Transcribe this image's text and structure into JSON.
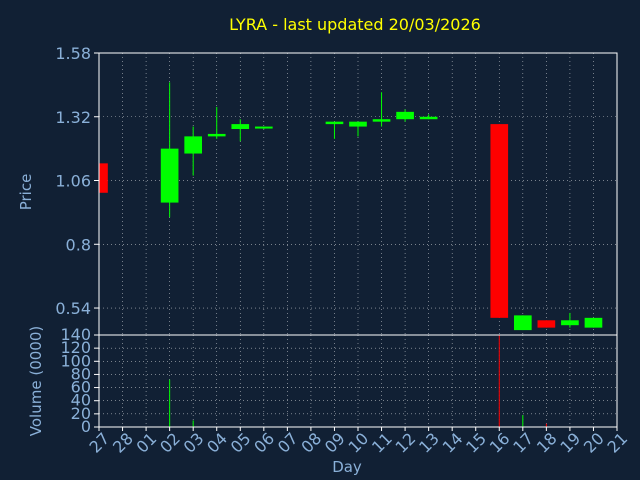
{
  "chart_data": [
    {
      "type": "candlestick",
      "title": "LYRA - last updated 20/03/2026",
      "ylabel": "Price",
      "ylim": [
        0.43,
        1.58
      ],
      "yticks": [
        "1.58",
        "1.32",
        "1.06",
        "0.8",
        "0.54"
      ],
      "ytick_values": [
        1.58,
        1.32,
        1.06,
        0.8,
        0.54
      ],
      "grid": true,
      "up_color": "#00ff00",
      "down_color": "#ff0000",
      "candles": [
        {
          "day": "27",
          "open": 1.13,
          "high": 1.13,
          "low": 1.01,
          "close": 1.01
        },
        {
          "day": "02",
          "open": 0.97,
          "high": 1.46,
          "low": 0.91,
          "close": 1.19
        },
        {
          "day": "03",
          "open": 1.17,
          "high": 1.28,
          "low": 1.08,
          "close": 1.24
        },
        {
          "day": "04",
          "open": 1.24,
          "high": 1.36,
          "low": 1.23,
          "close": 1.25
        },
        {
          "day": "05",
          "open": 1.27,
          "high": 1.31,
          "low": 1.22,
          "close": 1.29
        },
        {
          "day": "06",
          "open": 1.28,
          "high": 1.28,
          "low": 1.27,
          "close": 1.28
        },
        {
          "day": "09",
          "open": 1.29,
          "high": 1.3,
          "low": 1.23,
          "close": 1.3
        },
        {
          "day": "10",
          "open": 1.28,
          "high": 1.3,
          "low": 1.24,
          "close": 1.3
        },
        {
          "day": "11",
          "open": 1.3,
          "high": 1.42,
          "low": 1.28,
          "close": 1.31
        },
        {
          "day": "12",
          "open": 1.31,
          "high": 1.35,
          "low": 1.3,
          "close": 1.34
        },
        {
          "day": "13",
          "open": 1.31,
          "high": 1.33,
          "low": 1.31,
          "close": 1.32
        },
        {
          "day": "16",
          "open": 1.29,
          "high": 1.29,
          "low": 0.5,
          "close": 0.5
        },
        {
          "day": "17",
          "open": 0.45,
          "high": 0.51,
          "low": 0.45,
          "close": 0.51
        },
        {
          "day": "18",
          "open": 0.49,
          "high": 0.49,
          "low": 0.46,
          "close": 0.46
        },
        {
          "day": "19",
          "open": 0.47,
          "high": 0.52,
          "low": 0.46,
          "close": 0.49
        },
        {
          "day": "20",
          "open": 0.46,
          "high": 0.5,
          "low": 0.46,
          "close": 0.5
        }
      ]
    },
    {
      "type": "bar",
      "ylabel": "Volume (0000)",
      "xlabel": "Day",
      "ylim": [
        0,
        140
      ],
      "yticks": [
        "140",
        "120",
        "100",
        "80",
        "60",
        "40",
        "20",
        "0"
      ],
      "ytick_values": [
        140,
        120,
        100,
        80,
        60,
        40,
        20,
        0
      ],
      "categories": [
        "27",
        "28",
        "01",
        "02",
        "03",
        "04",
        "05",
        "06",
        "07",
        "08",
        "09",
        "10",
        "11",
        "12",
        "13",
        "14",
        "15",
        "16",
        "17",
        "18",
        "19",
        "20",
        "21"
      ],
      "values": [
        0,
        0,
        0,
        72,
        10,
        0,
        0,
        0,
        0,
        0,
        0,
        0,
        0,
        0,
        0,
        0,
        0,
        140,
        18,
        5,
        0,
        0,
        0
      ],
      "bar_colors": [
        "#00ff00",
        "#00ff00",
        "#00ff00",
        "#00ff00",
        "#00ff00",
        "#00ff00",
        "#00ff00",
        "#00ff00",
        "#00ff00",
        "#00ff00",
        "#00ff00",
        "#00ff00",
        "#00ff00",
        "#00ff00",
        "#00ff00",
        "#00ff00",
        "#00ff00",
        "#ff0000",
        "#00ff00",
        "#ff0000",
        "#00ff00",
        "#00ff00",
        "#00ff00"
      ]
    }
  ],
  "colors": {
    "background": "#112034",
    "title": "#ffff00",
    "axis_text": "#8ab0d8",
    "frame": "#ffffff",
    "grid": "#ffffff"
  }
}
